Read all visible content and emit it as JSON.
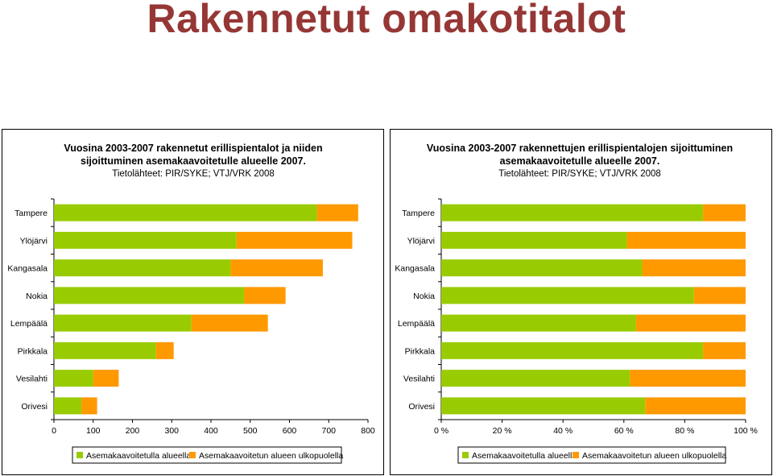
{
  "page": {
    "title": "Rakennetut omakotitalot"
  },
  "colors": {
    "title": "#953735",
    "inside": "#99cc00",
    "outside": "#ff9900"
  },
  "chart_data": [
    {
      "type": "bar",
      "orientation": "horizontal",
      "stacked": true,
      "title_lines": [
        "Vuosina 2003-2007 rakennetut erillispientalot ja niiden",
        "sijoittuminen asemakaavoitetulle alueelle 2007."
      ],
      "subtitle": "Tietolähteet: PIR/SYKE; VTJ/VRK 2008",
      "categories": [
        "Tampere",
        "Ylöjärvi",
        "Kangasala",
        "Nokia",
        "Lempäälä",
        "Pirkkala",
        "Vesilahti",
        "Orivesi"
      ],
      "series": [
        {
          "name": "Asemakaavoitetulla alueella",
          "values": [
            670,
            465,
            450,
            485,
            350,
            260,
            100,
            70
          ]
        },
        {
          "name": "Asemakaavoitetun alueen ulkopuolella",
          "values": [
            105,
            295,
            235,
            105,
            195,
            45,
            65,
            40
          ]
        }
      ],
      "xlim": [
        0,
        800
      ],
      "xticks": [
        "0",
        "100",
        "200",
        "300",
        "400",
        "500",
        "600",
        "700",
        "800"
      ],
      "legend": "bottom"
    },
    {
      "type": "bar",
      "orientation": "horizontal",
      "stacked": true,
      "percent": true,
      "title_lines": [
        "Vuosina 2003-2007 rakennettujen erillispientalojen sijoittuminen",
        "asemakaavoitetulle alueelle 2007."
      ],
      "subtitle": "Tietolähteet: PIR/SYKE; VTJ/VRK 2008",
      "categories": [
        "Tampere",
        "Ylöjärvi",
        "Kangasala",
        "Nokia",
        "Lempäälä",
        "Pirkkala",
        "Vesilahti",
        "Orivesi"
      ],
      "series": [
        {
          "name": "Asemakaavoitetulla alueella",
          "values": [
            86,
            61,
            66,
            83,
            64,
            86,
            62,
            67
          ]
        },
        {
          "name": "Asemakaavoitetun alueen ulkopuolella",
          "values": [
            14,
            39,
            34,
            17,
            36,
            14,
            38,
            33
          ]
        }
      ],
      "xlim": [
        0,
        100
      ],
      "xticks": [
        "0 %",
        "20 %",
        "40 %",
        "60 %",
        "80 %",
        "100 %"
      ],
      "legend": "bottom"
    }
  ]
}
